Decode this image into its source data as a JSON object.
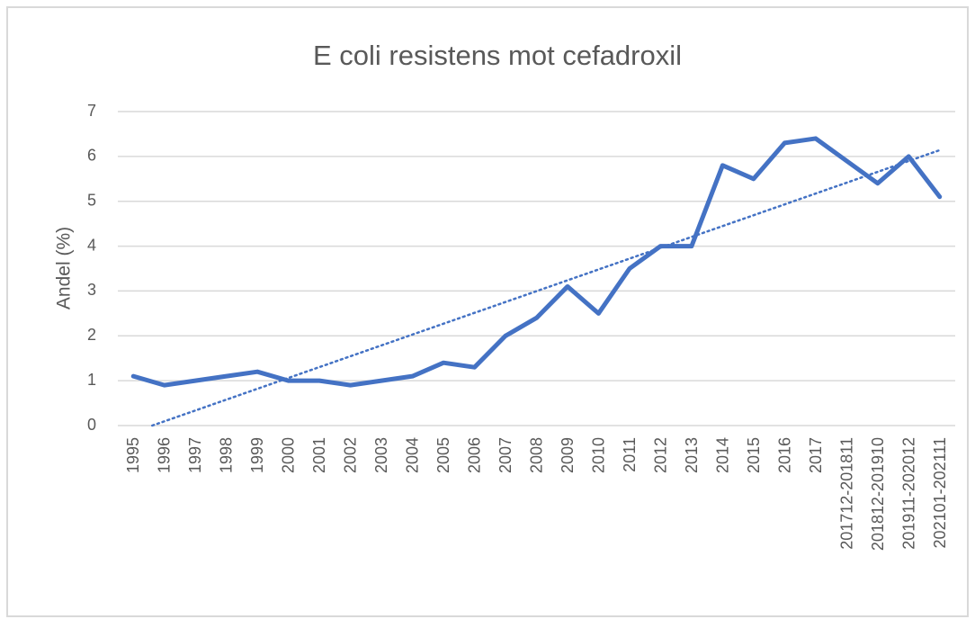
{
  "chart_data": {
    "type": "line",
    "title": "E coli resistens mot cefadroxil",
    "y_label": "Andel (%)",
    "categories": [
      "1995",
      "1996",
      "1997",
      "1998",
      "1999",
      "2000",
      "2001",
      "2002",
      "2003",
      "2004",
      "2005",
      "2006",
      "2007",
      "2008",
      "2009",
      "2010",
      "2011",
      "2012",
      "2013",
      "2014",
      "2015",
      "2016",
      "2017",
      "201712-201811",
      "201812-201910",
      "201911-202012",
      "202101-202111"
    ],
    "series": [
      {
        "name": "Andel",
        "color": "#4472c4",
        "values": [
          1.1,
          0.9,
          1.0,
          1.1,
          1.2,
          1.0,
          1.0,
          0.9,
          1.0,
          1.1,
          1.4,
          1.3,
          2.0,
          2.4,
          3.1,
          2.5,
          3.5,
          4.0,
          4.0,
          5.8,
          5.5,
          6.3,
          6.4,
          5.9,
          5.4,
          6.0,
          5.1
        ]
      }
    ],
    "trendline": "linear",
    "ylim": [
      0,
      7
    ],
    "yticks": [
      0,
      1,
      2,
      3,
      4,
      5,
      6,
      7
    ],
    "grid": true
  }
}
